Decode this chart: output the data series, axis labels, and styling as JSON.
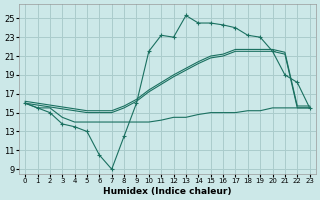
{
  "bg_color": "#cce8e8",
  "grid_color": "#aacccc",
  "line_color": "#1a7060",
  "xlabel": "Humidex (Indice chaleur)",
  "xlim": [
    -0.5,
    23.5
  ],
  "ylim": [
    8.5,
    26.5
  ],
  "xticks": [
    0,
    1,
    2,
    3,
    4,
    5,
    6,
    7,
    8,
    9,
    10,
    11,
    12,
    13,
    14,
    15,
    16,
    17,
    18,
    19,
    20,
    21,
    22,
    23
  ],
  "yticks": [
    9,
    11,
    13,
    15,
    17,
    19,
    21,
    23,
    25
  ],
  "curve_zigzag_x": [
    0,
    1,
    2,
    3,
    4,
    5,
    6,
    7,
    8,
    9,
    10,
    11,
    12,
    13,
    14,
    15,
    16,
    17,
    18,
    19,
    20,
    21,
    22,
    23
  ],
  "curve_zigzag_y": [
    16.0,
    15.5,
    15.0,
    13.8,
    13.5,
    13.0,
    10.5,
    9.0,
    12.5,
    16.0,
    21.5,
    23.2,
    23.0,
    25.3,
    24.5,
    24.5,
    24.3,
    24.0,
    23.2,
    23.0,
    21.5,
    19.0,
    18.2,
    15.5
  ],
  "curve_upper1_x": [
    0,
    1,
    2,
    3,
    4,
    5,
    6,
    7,
    8,
    9,
    10,
    11,
    12,
    13,
    14,
    15,
    16,
    17,
    18,
    19,
    20,
    21,
    22,
    23
  ],
  "curve_upper1_y": [
    16.0,
    15.8,
    15.6,
    15.4,
    15.2,
    15.0,
    15.0,
    15.0,
    15.5,
    16.2,
    17.2,
    18.0,
    18.8,
    19.5,
    20.2,
    20.8,
    21.0,
    21.5,
    21.5,
    21.5,
    21.5,
    21.2,
    15.5,
    15.5
  ],
  "curve_upper2_x": [
    0,
    1,
    2,
    3,
    4,
    5,
    6,
    7,
    8,
    9,
    10,
    11,
    12,
    13,
    14,
    15,
    16,
    17,
    18,
    19,
    20,
    21,
    22,
    23
  ],
  "curve_upper2_y": [
    16.2,
    16.0,
    15.8,
    15.6,
    15.4,
    15.2,
    15.2,
    15.2,
    15.7,
    16.4,
    17.4,
    18.2,
    19.0,
    19.7,
    20.4,
    21.0,
    21.2,
    21.7,
    21.7,
    21.7,
    21.7,
    21.4,
    15.7,
    15.7
  ],
  "curve_flat_x": [
    0,
    1,
    2,
    3,
    4,
    5,
    6,
    7,
    8,
    9,
    10,
    11,
    12,
    13,
    14,
    15,
    16,
    17,
    18,
    19,
    20,
    21,
    22,
    23
  ],
  "curve_flat_y": [
    16.0,
    15.5,
    15.5,
    14.5,
    14.0,
    14.0,
    14.0,
    14.0,
    14.0,
    14.0,
    14.0,
    14.2,
    14.5,
    14.5,
    14.8,
    15.0,
    15.0,
    15.0,
    15.2,
    15.2,
    15.5,
    15.5,
    15.5,
    15.5
  ]
}
